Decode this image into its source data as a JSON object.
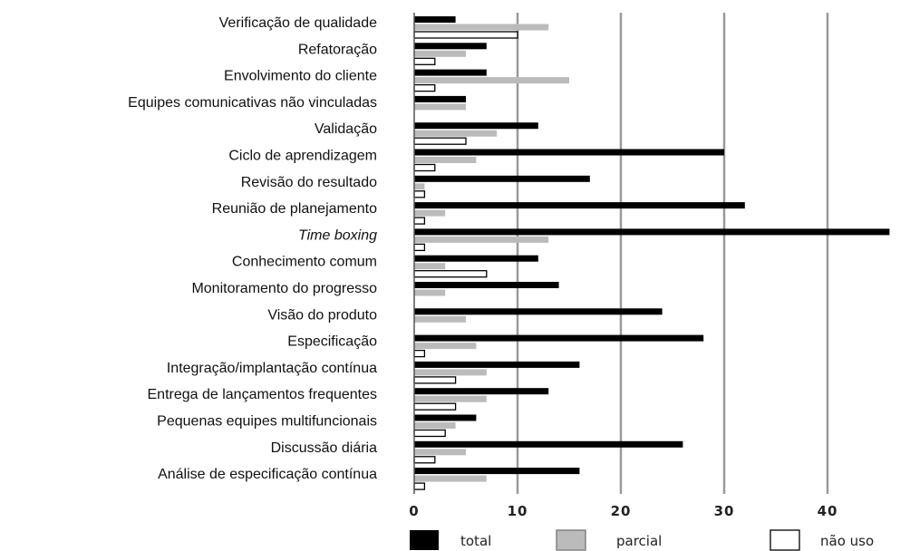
{
  "chart_data": {
    "type": "bar",
    "orientation": "horizontal",
    "categories": [
      "Verificação de qualidade",
      "Refatoração",
      "Envolvimento do cliente",
      "Equipes comunicativas não vinculadas",
      "Validação",
      "Ciclo de aprendizagem",
      "Revisão do resultado",
      "Reunião de planejamento",
      "Time boxing",
      "Conhecimento comum",
      "Monitoramento do progresso",
      "Visão do produto",
      "Especificação",
      "Integração/implantação contínua",
      "Entrega de lançamentos frequentes",
      "Pequenas equipes multifuncionais",
      "Discussão diária",
      "Análise de especificação contínua"
    ],
    "italic_categories": [
      "Time boxing"
    ],
    "series": [
      {
        "name": "total",
        "color": "#000000",
        "values": [
          4,
          7,
          7,
          5,
          12,
          30,
          17,
          32,
          46,
          12,
          14,
          24,
          28,
          16,
          13,
          6,
          26,
          16
        ]
      },
      {
        "name": "parcial",
        "color": "#bbbbbb",
        "values": [
          13,
          5,
          15,
          5,
          8,
          6,
          1,
          3,
          13,
          3,
          3,
          5,
          6,
          7,
          7,
          4,
          5,
          7
        ]
      },
      {
        "name": "não uso",
        "color": "#ffffff",
        "values": [
          10,
          2,
          2,
          0,
          5,
          2,
          1,
          1,
          1,
          7,
          0,
          0,
          1,
          4,
          4,
          3,
          2,
          1
        ]
      }
    ],
    "x_ticks": [
      "0",
      "10",
      "20",
      "30",
      "40"
    ],
    "xlim": [
      0,
      46
    ],
    "grid": true,
    "legend_position": "bottom"
  }
}
